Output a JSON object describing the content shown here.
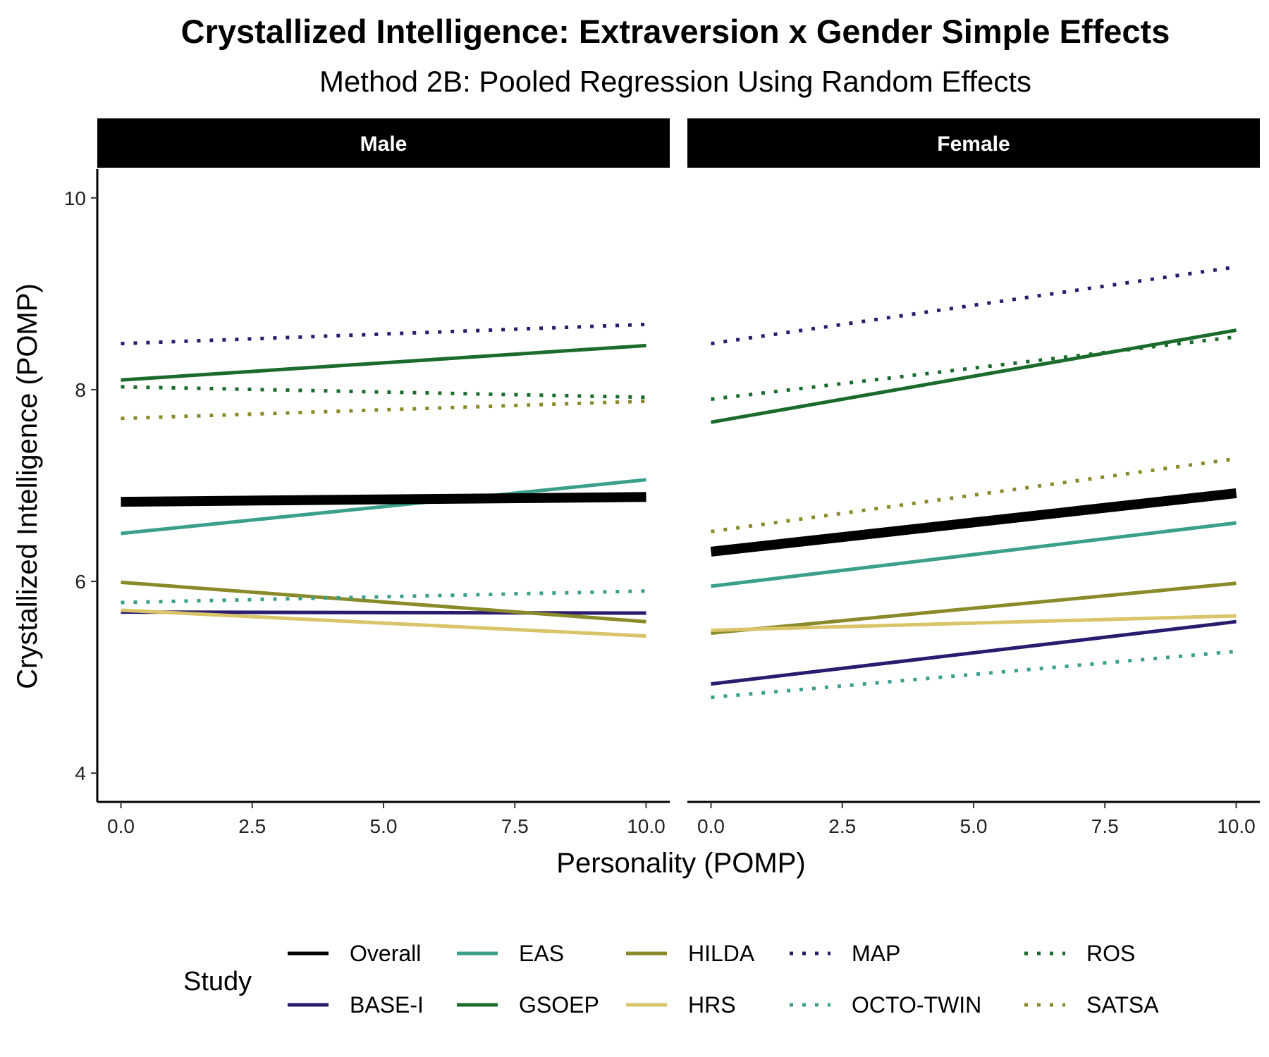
{
  "chart_data": {
    "type": "line",
    "title": "Crystallized Intelligence: Extraversion x Gender Simple Effects",
    "subtitle": "Method 2B: Pooled Regression Using Random Effects",
    "xlabel": "Personality (POMP)",
    "ylabel": "Crystallized Intelligence (POMP)",
    "xlim": [
      -0.45,
      10.45
    ],
    "ylim": [
      3.7,
      10.3
    ],
    "xticks": [
      "0.0",
      "2.5",
      "5.0",
      "7.5",
      "10.0"
    ],
    "yticks": [
      "4",
      "6",
      "8",
      "10"
    ],
    "grid": false,
    "legend_position": "bottom",
    "legend_title": "Study",
    "panels": [
      {
        "label": "Male",
        "series": [
          {
            "name": "Overall",
            "color": "#000000",
            "style": "solid",
            "weight": "thick",
            "x": [
              0,
              10
            ],
            "y": [
              6.83,
              6.88
            ]
          },
          {
            "name": "BASE-I",
            "color": "#2a1b6e",
            "style": "solid",
            "weight": "normal",
            "x": [
              0,
              10
            ],
            "y": [
              5.68,
              5.67
            ]
          },
          {
            "name": "EAS",
            "color": "#3b9f8c",
            "style": "solid",
            "weight": "normal",
            "x": [
              0,
              10
            ],
            "y": [
              6.5,
              7.06
            ]
          },
          {
            "name": "GSOEP",
            "color": "#1a6b2c",
            "style": "solid",
            "weight": "normal",
            "x": [
              0,
              10
            ],
            "y": [
              8.1,
              8.46
            ]
          },
          {
            "name": "HILDA",
            "color": "#8a8a2a",
            "style": "solid",
            "weight": "normal",
            "x": [
              0,
              10
            ],
            "y": [
              5.99,
              5.58
            ]
          },
          {
            "name": "HRS",
            "color": "#d9c46a",
            "style": "solid",
            "weight": "normal",
            "x": [
              0,
              10
            ],
            "y": [
              5.7,
              5.43
            ]
          },
          {
            "name": "MAP",
            "color": "#2a1b6e",
            "style": "dotted",
            "weight": "normal",
            "x": [
              0,
              10
            ],
            "y": [
              8.48,
              8.68
            ]
          },
          {
            "name": "OCTO-TWIN",
            "color": "#3b9f8c",
            "style": "dotted",
            "weight": "normal",
            "x": [
              0,
              10
            ],
            "y": [
              5.78,
              5.9
            ]
          },
          {
            "name": "ROS",
            "color": "#1a6b2c",
            "style": "dotted",
            "weight": "normal",
            "x": [
              0,
              10
            ],
            "y": [
              8.03,
              7.92
            ]
          },
          {
            "name": "SATSA",
            "color": "#8a8a2a",
            "style": "dotted",
            "weight": "normal",
            "x": [
              0,
              10
            ],
            "y": [
              7.7,
              7.88
            ]
          }
        ]
      },
      {
        "label": "Female",
        "series": [
          {
            "name": "Overall",
            "color": "#000000",
            "style": "solid",
            "weight": "thick",
            "x": [
              0,
              10
            ],
            "y": [
              6.31,
              6.92
            ]
          },
          {
            "name": "BASE-I",
            "color": "#2a1b6e",
            "style": "solid",
            "weight": "normal",
            "x": [
              0,
              10
            ],
            "y": [
              4.93,
              5.58
            ]
          },
          {
            "name": "EAS",
            "color": "#3b9f8c",
            "style": "solid",
            "weight": "normal",
            "x": [
              0,
              10
            ],
            "y": [
              5.95,
              6.61
            ]
          },
          {
            "name": "GSOEP",
            "color": "#1a6b2c",
            "style": "solid",
            "weight": "normal",
            "x": [
              0,
              10
            ],
            "y": [
              7.66,
              8.62
            ]
          },
          {
            "name": "HILDA",
            "color": "#8a8a2a",
            "style": "solid",
            "weight": "normal",
            "x": [
              0,
              10
            ],
            "y": [
              5.46,
              5.98
            ]
          },
          {
            "name": "HRS",
            "color": "#d9c46a",
            "style": "solid",
            "weight": "normal",
            "x": [
              0,
              10
            ],
            "y": [
              5.49,
              5.64
            ]
          },
          {
            "name": "MAP",
            "color": "#2a1b6e",
            "style": "dotted",
            "weight": "normal",
            "x": [
              0,
              10
            ],
            "y": [
              8.48,
              9.28
            ]
          },
          {
            "name": "OCTO-TWIN",
            "color": "#3b9f8c",
            "style": "dotted",
            "weight": "normal",
            "x": [
              0,
              10
            ],
            "y": [
              4.79,
              5.27
            ]
          },
          {
            "name": "ROS",
            "color": "#1a6b2c",
            "style": "dotted",
            "weight": "normal",
            "x": [
              0,
              10
            ],
            "y": [
              7.9,
              8.55
            ]
          },
          {
            "name": "SATSA",
            "color": "#8a8a2a",
            "style": "dotted",
            "weight": "normal",
            "x": [
              0,
              10
            ],
            "y": [
              6.52,
              7.28
            ]
          }
        ]
      }
    ],
    "legend": [
      {
        "name": "Overall",
        "color": "#000000",
        "style": "solid"
      },
      {
        "name": "BASE-I",
        "color": "#2a1b6e",
        "style": "solid"
      },
      {
        "name": "EAS",
        "color": "#3b9f8c",
        "style": "solid"
      },
      {
        "name": "GSOEP",
        "color": "#1a6b2c",
        "style": "solid"
      },
      {
        "name": "HILDA",
        "color": "#8a8a2a",
        "style": "solid"
      },
      {
        "name": "HRS",
        "color": "#d9c46a",
        "style": "solid"
      },
      {
        "name": "MAP",
        "color": "#2a1b6e",
        "style": "dotted"
      },
      {
        "name": "OCTO-TWIN",
        "color": "#3b9f8c",
        "style": "dotted"
      },
      {
        "name": "ROS",
        "color": "#1a6b2c",
        "style": "dotted"
      },
      {
        "name": "SATSA",
        "color": "#8a8a2a",
        "style": "dotted"
      }
    ]
  }
}
